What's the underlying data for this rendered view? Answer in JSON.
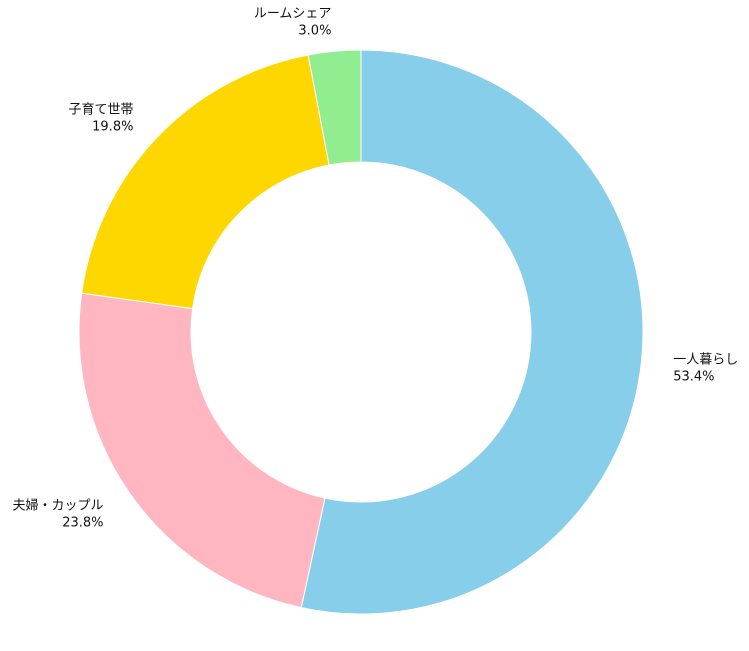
{
  "chart_data": {
    "type": "pie",
    "donut": true,
    "title": "",
    "start": "top",
    "direction": "clockwise",
    "slices": [
      {
        "label": "一人暮らし",
        "value": 53.4,
        "value_label": "53.4%",
        "color": "#87CEEB"
      },
      {
        "label": "夫婦・カップル",
        "value": 23.8,
        "value_label": "23.8%",
        "color": "#FFB6C1"
      },
      {
        "label": "子育て世帯",
        "value": 19.8,
        "value_label": "19.8%",
        "color": "#FFD700"
      },
      {
        "label": "ルームシェア",
        "value": 3.0,
        "value_label": "3.0%",
        "color": "#90EE90"
      }
    ]
  }
}
